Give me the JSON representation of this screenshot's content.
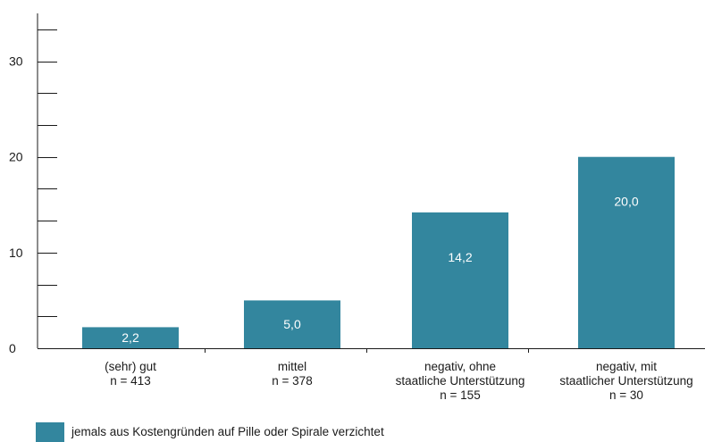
{
  "chart_data": {
    "type": "bar",
    "categories": [
      [
        "(sehr) gut",
        "n = 413"
      ],
      [
        "mittel",
        "n = 378"
      ],
      [
        "negativ, ohne",
        "staatliche Unterstützung",
        "n = 155"
      ],
      [
        "negativ, mit",
        "staatlicher Unterstützung",
        "n = 30"
      ]
    ],
    "series": [
      {
        "name": "jemals aus Kostengründen auf Pille oder Spirale verzichtet",
        "values": [
          2.2,
          5.0,
          14.2,
          20.0
        ],
        "labels": [
          "2,2",
          "5,0",
          "14,2",
          "20,0"
        ],
        "color": "#33869e"
      }
    ],
    "ylim": [
      0,
      35
    ],
    "y_major_ticks": [
      0,
      10,
      20,
      30
    ],
    "y_minor_tick_step": 3.333,
    "grid": false,
    "legend_position": "bottom-left"
  },
  "legend": {
    "label": "jemals aus Kostengründen auf Pille oder Spirale verzichtet",
    "color": "#33869e"
  }
}
